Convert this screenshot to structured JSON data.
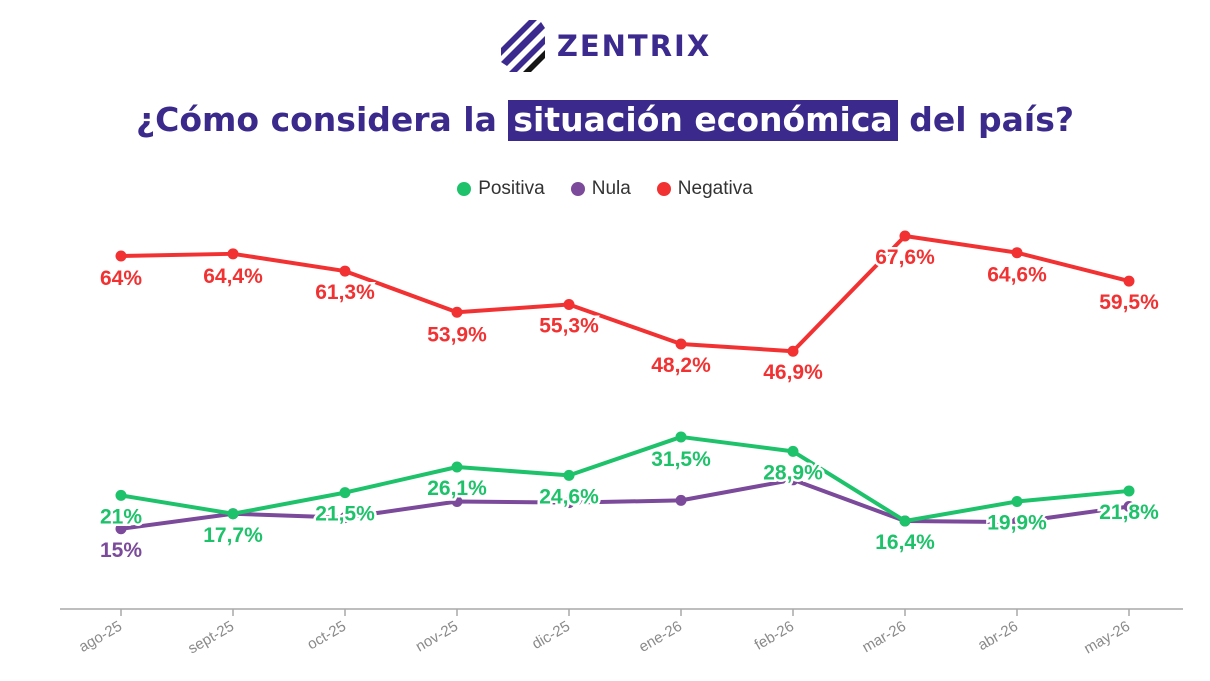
{
  "brand": {
    "name": "ZENTRIX",
    "logo_icon": "zentrix-stripes-logo"
  },
  "title": {
    "before": "¿Cómo considera la ",
    "highlight": "situación económica",
    "after": " del país?"
  },
  "colors": {
    "Positiva": "#1ec26a",
    "Nula": "#7b4a9a",
    "Negativa": "#f23232",
    "title": "#3b2a8c"
  },
  "chart_data": {
    "type": "line",
    "legend_position": "top-center",
    "grid": false,
    "categories": [
      "ago-25",
      "sept-25",
      "oct-25",
      "nov-25",
      "dic-25",
      "ene-26",
      "feb-26",
      "mar-26",
      "abr-26",
      "may-26"
    ],
    "ylim": [
      0,
      70
    ],
    "series": [
      {
        "name": "Positiva",
        "values": [
          21,
          17.7,
          21.5,
          26.1,
          24.6,
          31.5,
          28.9,
          16.4,
          19.9,
          21.8
        ],
        "labels": [
          "21%",
          "17,7%",
          "21,5%",
          "26,1%",
          "24,6%",
          "31,5%",
          "28,9%",
          "16,4%",
          "19,9%",
          "21,8%"
        ]
      },
      {
        "name": "Nula",
        "values": [
          15,
          17.7,
          17,
          19.9,
          19.7,
          20.1,
          23.8,
          16.4,
          16.2,
          19
        ],
        "labels": [
          "15%"
        ]
      },
      {
        "name": "Negativa",
        "values": [
          64,
          64.4,
          61.3,
          53.9,
          55.3,
          48.2,
          46.9,
          67.6,
          64.6,
          59.5
        ],
        "labels": [
          "64%",
          "64,4%",
          "61,3%",
          "53,9%",
          "55,3%",
          "48,2%",
          "46,9%",
          "67,6%",
          "64,6%",
          "59,5%"
        ]
      }
    ]
  }
}
